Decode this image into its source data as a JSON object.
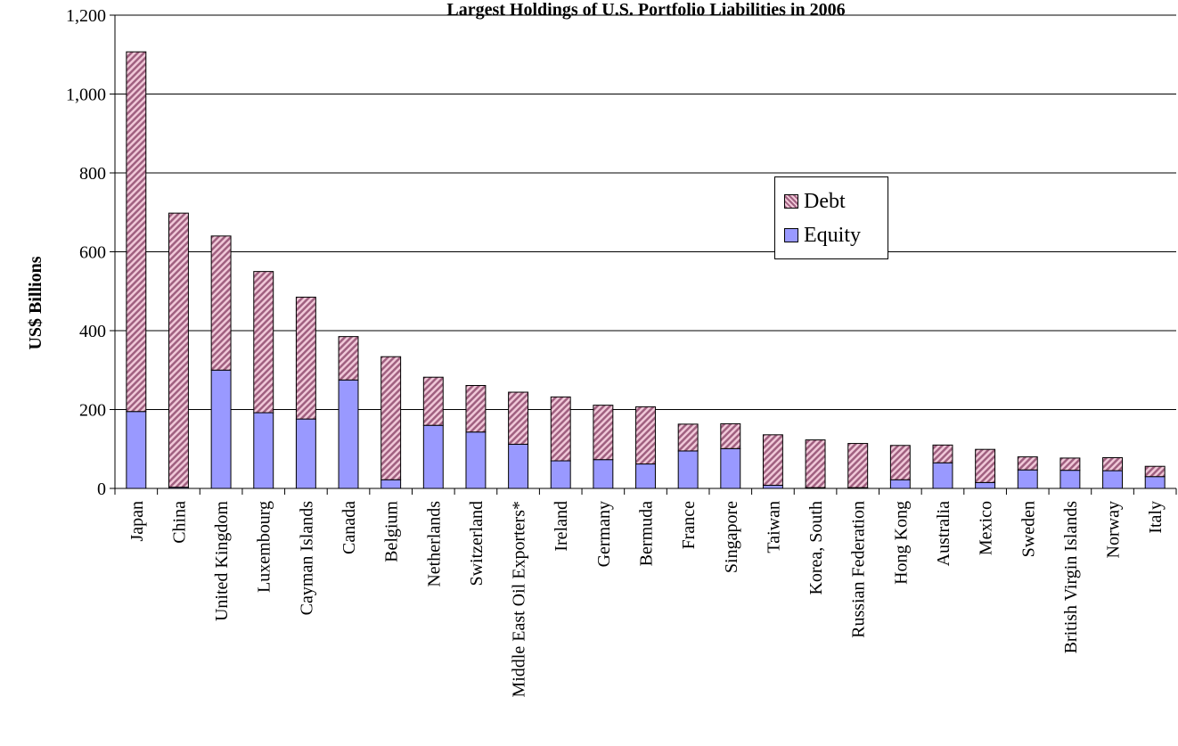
{
  "chart_data": {
    "type": "bar",
    "stacked": true,
    "title": "Largest Holdings of U.S. Portfolio Liabilities in 2006",
    "ylabel": "US$ Billions",
    "xlabel": "",
    "ylim": [
      0,
      1200
    ],
    "yticks": [
      0,
      200,
      400,
      600,
      800,
      1000,
      1200
    ],
    "ytick_labels": [
      "0",
      "200",
      "400",
      "600",
      "800",
      "1,000",
      "1,200"
    ],
    "grid": true,
    "legend_position": "top-right",
    "categories": [
      "Japan",
      "China",
      "United Kingdom",
      "Luxembourg",
      "Cayman Islands",
      "Canada",
      "Belgium",
      "Netherlands",
      "Switzerland",
      "Middle East Oil Exporters*",
      "Ireland",
      "Germany",
      "Bermuda",
      "France",
      "Singapore",
      "Taiwan",
      "Korea, South",
      "Russian Federation",
      "Hong Kong",
      "Australia",
      "Mexico",
      "Sweden",
      "British Virgin Islands",
      "Norway",
      "Italy"
    ],
    "series": [
      {
        "name": "Equity",
        "color": "#9999ff",
        "values": [
          195,
          3,
          300,
          192,
          176,
          275,
          22,
          160,
          143,
          112,
          70,
          73,
          62,
          95,
          101,
          8,
          2,
          2,
          22,
          65,
          15,
          47,
          46,
          45,
          30
        ]
      },
      {
        "name": "Debt",
        "color": "#b06b8b",
        "values": [
          912,
          695,
          340,
          358,
          309,
          110,
          312,
          122,
          118,
          132,
          162,
          138,
          145,
          68,
          63,
          128,
          121,
          112,
          87,
          45,
          84,
          33,
          31,
          33,
          26
        ]
      }
    ]
  }
}
